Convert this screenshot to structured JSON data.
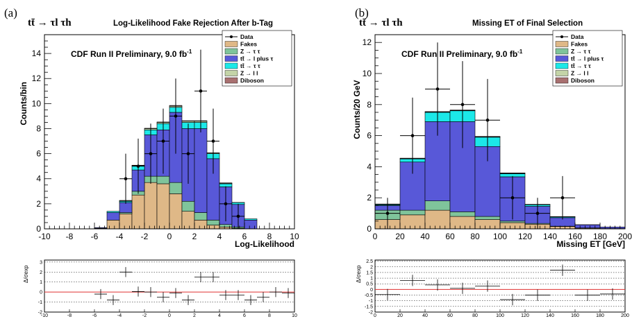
{
  "panel_a": {
    "tag": "(a)",
    "process": "tt̄ → τl τh",
    "title": "Log-Likelihood Fake Rejection After b-Tag",
    "prelim": "CDF Run II Preliminary, 9.0 fb",
    "prelim_sup": "-1",
    "ylabel": "Counts/bin",
    "xlabel": "Log-Likelihood",
    "ratio_ylabel": "Δ/σexp"
  },
  "panel_b": {
    "tag": "(b)",
    "process": "tt̄ → τl τh",
    "title": "Missing ET of Final Selection",
    "prelim": "CDF Run II Preliminary, 9.0 fb",
    "prelim_sup": "-1",
    "ylabel": "Counts/20 GeV",
    "xlabel": "Missing ET [GeV]",
    "ratio_ylabel": "Δ/σexp"
  },
  "legend": [
    "Data",
    "Fakes",
    "Z → τ τ",
    "tt̄ → l plus τ",
    "tt̄ → τ τ",
    "Z → l l",
    "Diboson"
  ],
  "colors": {
    "fakes": "#dfb887",
    "ztautau": "#7fc49b",
    "lplustau": "#5858d8",
    "tautau": "#1ce8e8",
    "zll": "#c4d4a8",
    "diboson": "#a87070",
    "ratio_line": "#e03030"
  },
  "chart_data": [
    {
      "type": "bar",
      "panel": "a",
      "title": "Log-Likelihood Fake Rejection After b-Tag",
      "xlabel": "Log-Likelihood",
      "ylabel": "Counts/bin",
      "xlim": [
        -10,
        10
      ],
      "ylim": [
        0,
        15.5
      ],
      "xticks": [
        -10,
        -8,
        -6,
        -4,
        -2,
        0,
        2,
        4,
        6,
        8,
        10
      ],
      "yticks": [
        0,
        2,
        4,
        6,
        8,
        10,
        12,
        14
      ],
      "bin_edges": [
        -6,
        -5,
        -4,
        -3,
        -2,
        -1,
        0,
        1,
        2,
        3,
        4,
        5,
        6,
        7
      ],
      "stack": [
        {
          "name": "Fakes",
          "values": [
            0.05,
            0.7,
            1.2,
            2.7,
            3.7,
            3.6,
            2.8,
            1.4,
            0.7,
            0.3,
            0.15,
            0.05,
            0,
            0
          ]
        },
        {
          "name": "Z → τ τ",
          "values": [
            0,
            0,
            0.1,
            0.3,
            0.5,
            0.6,
            0.9,
            0.8,
            0.6,
            0.4,
            0.2,
            0.1,
            0,
            0
          ]
        },
        {
          "name": "tt̄ → l plus τ",
          "values": [
            0.05,
            0.6,
            0.8,
            1.7,
            3.3,
            3.7,
            5.6,
            5.8,
            6.7,
            4.9,
            3.0,
            1.8,
            0.7,
            0.3
          ]
        },
        {
          "name": "tt̄ → τ τ",
          "values": [
            0,
            0.1,
            0.1,
            0.3,
            0.4,
            0.5,
            0.4,
            0.5,
            0.5,
            0.4,
            0.25,
            0.15,
            0.1,
            0.05
          ]
        },
        {
          "name": "Z → l l",
          "values": [
            0,
            0,
            0.05,
            0.05,
            0.1,
            0.1,
            0.1,
            0.1,
            0.1,
            0.05,
            0.05,
            0,
            0,
            0
          ]
        },
        {
          "name": "Diboson",
          "values": [
            0,
            0,
            0.02,
            0.03,
            0.03,
            0.03,
            0.05,
            0.03,
            0.03,
            0.02,
            0.02,
            0.01,
            0,
            0
          ]
        }
      ],
      "data_points": [
        {
          "x": -3.5,
          "y": 4,
          "err": 2.0
        },
        {
          "x": -2.5,
          "y": 5,
          "err": 2.2
        },
        {
          "x": -1.5,
          "y": 6,
          "err": 2.4
        },
        {
          "x": -0.5,
          "y": 7,
          "err": 2.6
        },
        {
          "x": 0.5,
          "y": 9,
          "err": 3.0
        },
        {
          "x": 1.5,
          "y": 6,
          "err": 2.4
        },
        {
          "x": 2.5,
          "y": 11,
          "err": 3.3
        },
        {
          "x": 3.5,
          "y": 7,
          "err": 2.6
        },
        {
          "x": 4.5,
          "y": 2,
          "err": 1.4
        },
        {
          "x": 5.5,
          "y": 1,
          "err": 1.0
        }
      ],
      "ratio": {
        "ylim": [
          -2,
          3.2
        ],
        "yticks": [
          -2,
          -1,
          0,
          1,
          2,
          3
        ],
        "points": [
          {
            "x": -5.5,
            "y": -0.2
          },
          {
            "x": -4.5,
            "y": -0.8
          },
          {
            "x": -3.5,
            "y": 2.0
          },
          {
            "x": -2.5,
            "y": 0.05
          },
          {
            "x": -1.5,
            "y": 0.0
          },
          {
            "x": -0.5,
            "y": -0.5
          },
          {
            "x": 0.5,
            "y": -0.1
          },
          {
            "x": 1.5,
            "y": -0.8
          },
          {
            "x": 2.5,
            "y": 1.5
          },
          {
            "x": 3.5,
            "y": 1.5
          },
          {
            "x": 4.5,
            "y": -0.3
          },
          {
            "x": 5.5,
            "y": -0.3
          },
          {
            "x": 6.5,
            "y": -0.8
          },
          {
            "x": 7.5,
            "y": -0.5
          },
          {
            "x": 8.5,
            "y": 0.0
          },
          {
            "x": 9.5,
            "y": -0.1
          }
        ]
      }
    },
    {
      "type": "bar",
      "panel": "b",
      "title": "Missing ET of Final Selection",
      "xlabel": "Missing ET [GeV]",
      "ylabel": "Counts/20 GeV",
      "xlim": [
        0,
        200
      ],
      "ylim": [
        0,
        12.5
      ],
      "xticks": [
        0,
        20,
        40,
        60,
        80,
        100,
        120,
        140,
        160,
        180,
        200
      ],
      "yticks": [
        0,
        2,
        4,
        6,
        8,
        10,
        12
      ],
      "bin_edges": [
        0,
        20,
        40,
        60,
        80,
        100,
        120,
        140,
        160,
        180,
        200
      ],
      "stack": [
        {
          "name": "Fakes",
          "values": [
            0.6,
            0.9,
            1.2,
            0.8,
            0.6,
            0.4,
            0.3,
            0.15,
            0.05,
            0.02
          ]
        },
        {
          "name": "Z → τ τ",
          "values": [
            0.6,
            0.3,
            0.6,
            0.3,
            0.2,
            0.1,
            0.05,
            0.02,
            0.01,
            0
          ]
        },
        {
          "name": "tt̄ → l plus τ",
          "values": [
            0.3,
            3.1,
            5.1,
            5.8,
            4.5,
            2.85,
            1.1,
            0.55,
            0.2,
            0.1
          ]
        },
        {
          "name": "tt̄ → τ τ",
          "values": [
            0.05,
            0.2,
            0.6,
            0.7,
            0.6,
            0.2,
            0.1,
            0.05,
            0,
            0
          ]
        },
        {
          "name": "Z → l l",
          "values": [
            0.02,
            0.02,
            0.02,
            0.02,
            0.02,
            0.02,
            0.01,
            0.01,
            0,
            0
          ]
        },
        {
          "name": "Diboson",
          "values": [
            0.03,
            0.03,
            0.03,
            0.03,
            0.03,
            0.03,
            0.02,
            0.01,
            0.01,
            0
          ]
        }
      ],
      "data_points": [
        {
          "x": 10,
          "y": 1,
          "err": 1.0
        },
        {
          "x": 30,
          "y": 6,
          "err": 2.45
        },
        {
          "x": 50,
          "y": 9,
          "err": 3.0
        },
        {
          "x": 70,
          "y": 8,
          "err": 2.8
        },
        {
          "x": 90,
          "y": 7,
          "err": 2.65
        },
        {
          "x": 110,
          "y": 2,
          "err": 1.4
        },
        {
          "x": 130,
          "y": 1,
          "err": 1.0
        },
        {
          "x": 150,
          "y": 2,
          "err": 1.4
        }
      ],
      "ratio": {
        "ylim": [
          -2,
          2.6
        ],
        "yticks": [
          -2,
          -1.5,
          -1,
          -0.5,
          0,
          0.5,
          1,
          1.5,
          2,
          2.5
        ],
        "points": [
          {
            "x": 10,
            "y": -0.45
          },
          {
            "x": 30,
            "y": 0.8
          },
          {
            "x": 50,
            "y": 0.4
          },
          {
            "x": 70,
            "y": 0.1
          },
          {
            "x": 90,
            "y": 0.3
          },
          {
            "x": 110,
            "y": -0.9
          },
          {
            "x": 130,
            "y": -0.5
          },
          {
            "x": 150,
            "y": 1.7
          },
          {
            "x": 170,
            "y": -0.5
          },
          {
            "x": 190,
            "y": -0.4
          }
        ]
      }
    }
  ]
}
